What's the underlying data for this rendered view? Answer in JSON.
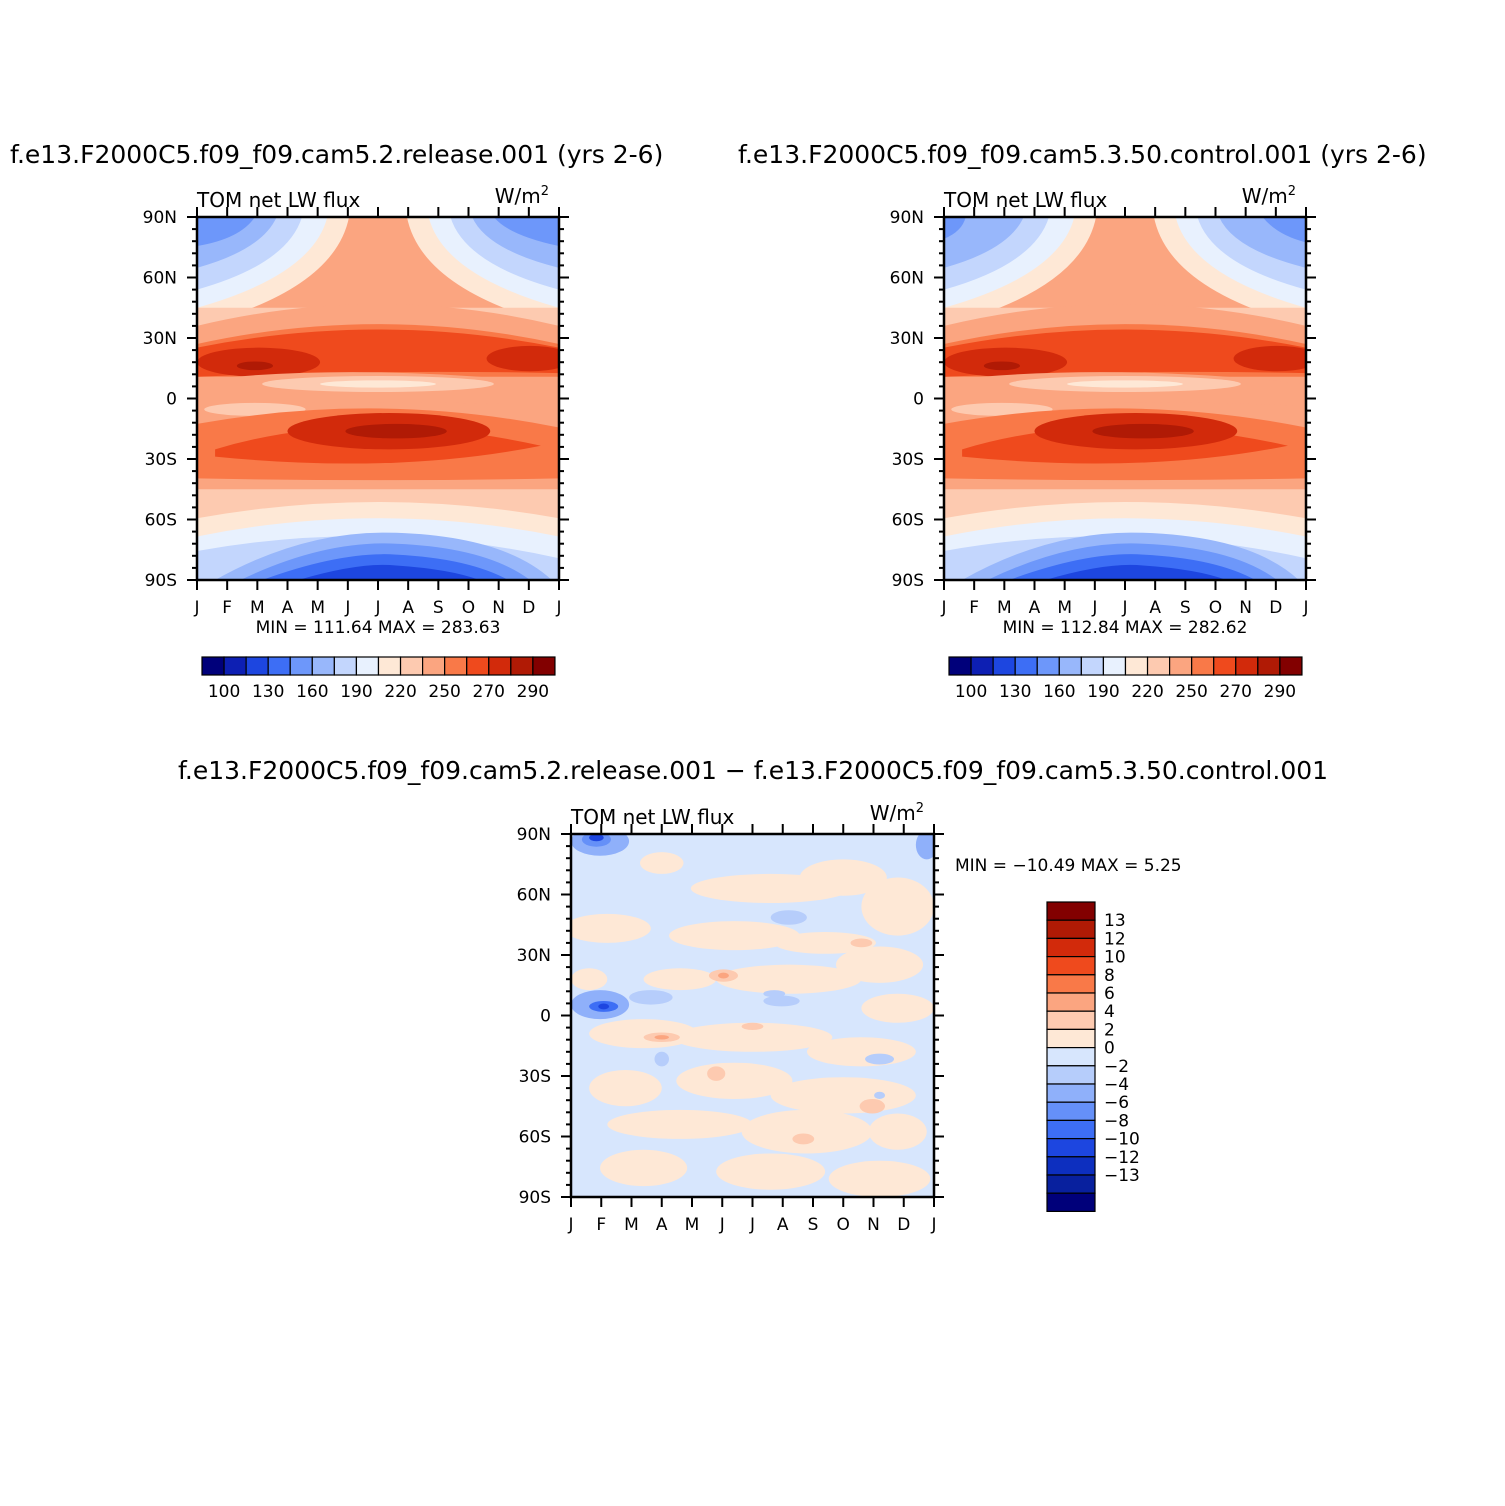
{
  "palette_main": [
    "#00007a",
    "#0d1fb3",
    "#1d46e0",
    "#3d6ef5",
    "#6d97fa",
    "#98b7fb",
    "#c3d6fd",
    "#e8f1fe",
    "#fee8d6",
    "#fdcab0",
    "#fba580",
    "#f97948",
    "#ef4a1d",
    "#d22a0b",
    "#b01a05",
    "#820000"
  ],
  "palette_diff": [
    "#820000",
    "#b01a05",
    "#d22a0b",
    "#ef4a1d",
    "#f97948",
    "#fba580",
    "#fdcab0",
    "#fee8d6",
    "#d7e6fd",
    "#b6cdfb",
    "#8fb0fa",
    "#6590f8",
    "#3d6ef5",
    "#1d46e0",
    "#0d2fbf",
    "#08209e",
    "#00007a"
  ],
  "panels": [
    {
      "title": "f.e13.F2000C5.f09_f09.cam5.2.release.001  (yrs 2-6)",
      "left_label": "TOM  net  LW  flux",
      "units": "W/m",
      "units_sup": "2",
      "stats": "MIN  =  111.64  MAX  =  283.63"
    },
    {
      "title": "f.e13.F2000C5.f09_f09.cam5.3.50.control.001  (yrs 2-6)",
      "left_label": "TOM  net  LW  flux",
      "units": "W/m",
      "units_sup": "2",
      "stats": "MIN  =  112.84  MAX  =  282.62"
    },
    {
      "title": "f.e13.F2000C5.f09_f09.cam5.2.release.001  −  f.e13.F2000C5.f09_f09.cam5.3.50.control.001",
      "left_label": "TOM  net  LW  flux",
      "units": "W/m",
      "units_sup": "2",
      "stats": "MIN  =  −10.49  MAX  =     5.25"
    }
  ],
  "chart_data": [
    {
      "type": "heatmap",
      "title": "f.e13.F2000C5.f09_f09.cam5.2.release.001  (yrs 2-6)",
      "variable": "TOM  net  LW  flux",
      "units": "W/m2",
      "x_ticks": [
        "J",
        "F",
        "M",
        "A",
        "M",
        "J",
        "J",
        "A",
        "S",
        "O",
        "N",
        "D",
        "J"
      ],
      "y_ticks": [
        "90N",
        "60N",
        "30N",
        "0",
        "30S",
        "60S",
        "90S"
      ],
      "min": 111.64,
      "max": 283.63,
      "colorbar_labels": [
        "100",
        "130",
        "160",
        "190",
        "220",
        "250",
        "270",
        "290"
      ]
    },
    {
      "type": "heatmap",
      "title": "f.e13.F2000C5.f09_f09.cam5.3.50.control.001  (yrs 2-6)",
      "variable": "TOM  net  LW  flux",
      "units": "W/m2",
      "x_ticks": [
        "J",
        "F",
        "M",
        "A",
        "M",
        "J",
        "J",
        "A",
        "S",
        "O",
        "N",
        "D",
        "J"
      ],
      "y_ticks": [
        "90N",
        "60N",
        "30N",
        "0",
        "30S",
        "60S",
        "90S"
      ],
      "min": 112.84,
      "max": 282.62,
      "colorbar_labels": [
        "100",
        "130",
        "160",
        "190",
        "220",
        "250",
        "270",
        "290"
      ]
    },
    {
      "type": "heatmap",
      "title": "f.e13.F2000C5.f09_f09.cam5.2.release.001 − f.e13.F2000C5.f09_f09.cam5.3.50.control.001",
      "variable": "TOM  net  LW  flux",
      "units": "W/m2",
      "x_ticks": [
        "J",
        "F",
        "M",
        "A",
        "M",
        "J",
        "J",
        "A",
        "S",
        "O",
        "N",
        "D",
        "J"
      ],
      "y_ticks": [
        "90N",
        "60N",
        "30N",
        "0",
        "30S",
        "60S",
        "90S"
      ],
      "min": -10.49,
      "max": 5.25,
      "colorbar_labels": [
        "13",
        "12",
        "10",
        "8",
        "6",
        "4",
        "2",
        "0",
        "−2",
        "−4",
        "−6",
        "−8",
        "−10",
        "−12",
        "−13"
      ]
    }
  ]
}
